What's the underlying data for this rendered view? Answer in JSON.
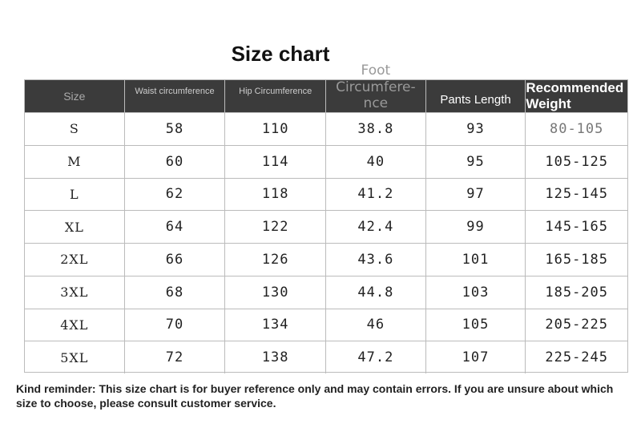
{
  "title": "Size chart",
  "headers": [
    "Size",
    "Waist circumference",
    "Hip Circumference",
    "Foot Circumfere-nce",
    "Pants Length",
    "Recommended Weight"
  ],
  "foot_header_lines": [
    "Foot",
    "Circumfere-",
    "nce"
  ],
  "rows": [
    [
      "S",
      "58",
      "110",
      "38.8",
      "93",
      "80-105"
    ],
    [
      "M",
      "60",
      "114",
      "40",
      "95",
      "105-125"
    ],
    [
      "L",
      "62",
      "118",
      "41.2",
      "97",
      "125-145"
    ],
    [
      "XL",
      "64",
      "122",
      "42.4",
      "99",
      "145-165"
    ],
    [
      "2XL",
      "66",
      "126",
      "43.6",
      "101",
      "165-185"
    ],
    [
      "3XL",
      "68",
      "130",
      "44.8",
      "103",
      "185-205"
    ],
    [
      "4XL",
      "70",
      "134",
      "46",
      "105",
      "205-225"
    ],
    [
      "5XL",
      "72",
      "138",
      "47.2",
      "107",
      "225-245"
    ]
  ],
  "note": "Kind reminder: This size chart is for buyer reference only and may contain errors. If you are unsure about which size to choose, please consult customer service.",
  "colors": {
    "header_bg": "#3b3b3b",
    "grid": "#bbbbbb"
  }
}
